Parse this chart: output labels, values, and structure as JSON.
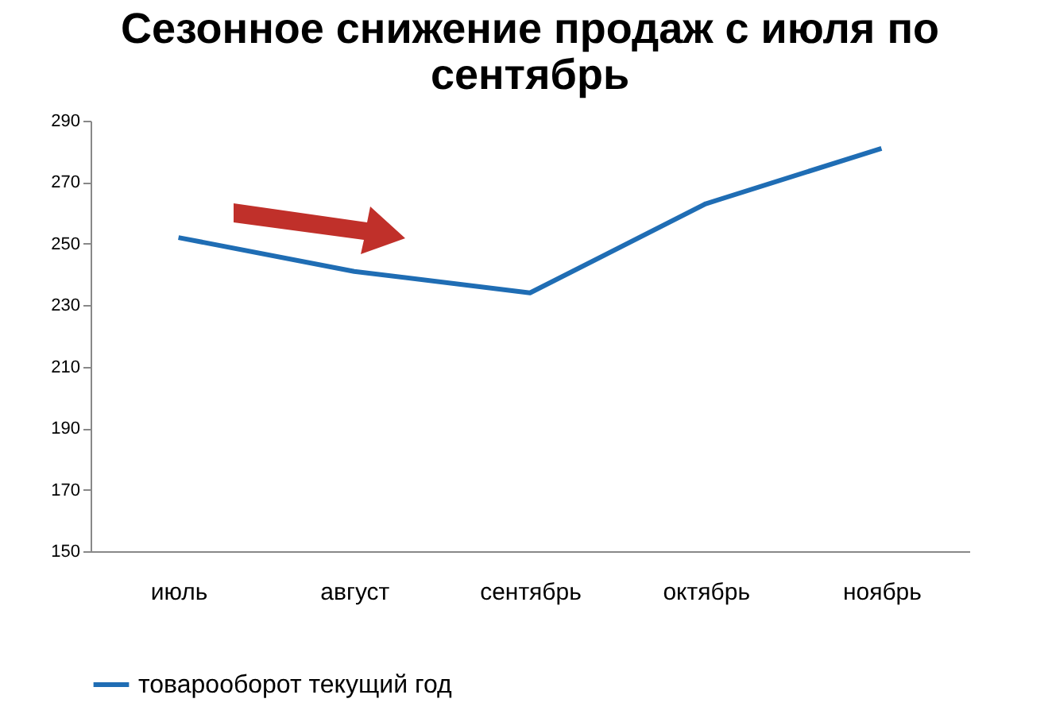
{
  "chart_data": {
    "type": "line",
    "title": "Сезонное снижение продаж с июля по сентябрь",
    "categories": [
      "июль",
      "август",
      "сентябрь",
      "октябрь",
      "ноябрь"
    ],
    "series": [
      {
        "name": "товарооборот текущий год",
        "color": "#1f6db4",
        "values": [
          252,
          241,
          234,
          263,
          281
        ]
      }
    ],
    "ylim": [
      150,
      290
    ],
    "yticks": [
      150,
      170,
      190,
      210,
      230,
      250,
      270,
      290
    ],
    "grid": false,
    "legend": "bottom",
    "marker": "none",
    "line_style": "solid"
  }
}
